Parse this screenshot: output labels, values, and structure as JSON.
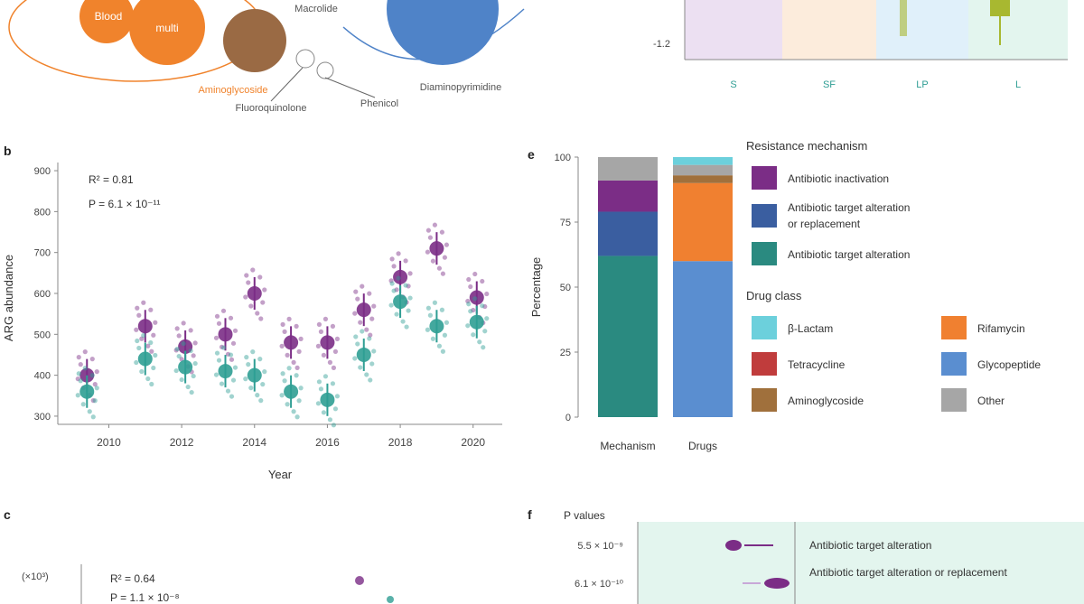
{
  "colors": {
    "purple": "#7b2d86",
    "teal": "#2f9e94",
    "dark_teal": "#2a8a80",
    "blue_dark": "#3a5ea0",
    "blue": "#5a8ed0",
    "orange": "#f08030",
    "red": "#c03c3c",
    "brown": "#a0703c",
    "gray": "#a6a6a6",
    "cyan": "#6cd0dc",
    "bubble_blue": "#4f83c8",
    "bubble_orange": "#f0832c",
    "bubble_brown": "#9a6a44",
    "panel_purple": "#ece0f2",
    "panel_peach": "#fcecdc",
    "panel_lightblue": "#e0f0fa",
    "panel_mint": "#e3f5ee",
    "olive": "#a8b830"
  },
  "panels": {
    "b_letter": "b",
    "c_letter": "c",
    "e_letter": "e",
    "f_letter": "f"
  },
  "bubbles": {
    "labels": [
      "Blood",
      "multi",
      "Aminoglycoside",
      "Fluoroquinolone",
      "Macrolide",
      "Diaminopyrimidine",
      "Phenicol"
    ]
  },
  "top_right": {
    "y_tick": "-1.2",
    "x_ticks": [
      "S",
      "SF",
      "LP",
      "L"
    ]
  },
  "chart_data": [
    {
      "panel": "b",
      "type": "scatter",
      "xlabel": "Year",
      "ylabel": "ARG abundance",
      "annotation_line1": "R² = 0.81",
      "annotation_line2": "P = 6.1 × 10⁻¹¹",
      "x_ticks": [
        "2010",
        "2012",
        "2014",
        "2016",
        "2018",
        "2020"
      ],
      "x_tick_values": [
        2010,
        2012,
        2014,
        2016,
        2018,
        2020
      ],
      "y_ticks": [
        "300",
        "400",
        "500",
        "600",
        "700",
        "800",
        "900"
      ],
      "y_tick_values": [
        300,
        400,
        500,
        600,
        700,
        800,
        900
      ],
      "xlim": [
        2008.6,
        2020.8
      ],
      "ylim": [
        280,
        920
      ],
      "series": [
        {
          "color_key": "purple",
          "x": [
            2009.4,
            2011.0,
            2012.1,
            2013.2,
            2014.0,
            2015.0,
            2016.0,
            2017.0,
            2018.0,
            2019.0,
            2020.1
          ],
          "y": [
            400,
            520,
            470,
            500,
            600,
            480,
            480,
            560,
            640,
            710,
            590
          ]
        },
        {
          "color_key": "teal",
          "x": [
            2009.4,
            2011.0,
            2012.1,
            2013.2,
            2014.0,
            2015.0,
            2016.0,
            2017.0,
            2018.0,
            2019.0,
            2020.1
          ],
          "y": [
            360,
            440,
            420,
            410,
            400,
            360,
            340,
            450,
            580,
            520,
            530
          ]
        }
      ]
    },
    {
      "panel": "e",
      "type": "bar",
      "stacked": true,
      "ylabel": "Percentage",
      "y_ticks": [
        "0",
        "25",
        "50",
        "75",
        "100"
      ],
      "y_tick_values": [
        0,
        25,
        50,
        75,
        100
      ],
      "ylim": [
        0,
        100
      ],
      "categories": [
        "Mechanism",
        "Drugs"
      ],
      "legend_title_1": "Resistance mechanism",
      "legend_1": [
        {
          "label": "Antibiotic inactivation",
          "color_key": "purple"
        },
        {
          "label": "Antibiotic target alteration or replacement",
          "color_key": "blue_dark"
        },
        {
          "label": "Antibiotic target alteration",
          "color_key": "dark_teal"
        }
      ],
      "legend_title_2": "Drug class",
      "legend_2": [
        {
          "label": "β-Lactam",
          "color_key": "cyan"
        },
        {
          "label": "Rifamycin",
          "color_key": "orange"
        },
        {
          "label": "Tetracycline",
          "color_key": "red"
        },
        {
          "label": "Glycopeptide",
          "color_key": "blue"
        },
        {
          "label": "Aminoglycoside",
          "color_key": "brown"
        },
        {
          "label": "Other",
          "color_key": "gray"
        }
      ],
      "stacks": [
        {
          "category": "Mechanism",
          "segments": [
            {
              "color_key": "dark_teal",
              "value": 62
            },
            {
              "color_key": "blue_dark",
              "value": 17
            },
            {
              "color_key": "purple",
              "value": 12
            },
            {
              "color_key": "gray",
              "value": 9
            }
          ]
        },
        {
          "category": "Drugs",
          "segments": [
            {
              "color_key": "blue",
              "value": 60
            },
            {
              "color_key": "orange",
              "value": 30
            },
            {
              "color_key": "brown",
              "value": 3
            },
            {
              "color_key": "gray",
              "value": 4
            },
            {
              "color_key": "cyan",
              "value": 3
            }
          ]
        }
      ]
    }
  ],
  "panel_c": {
    "annotation_line1": "R² = 0.64",
    "annotation_line2": "P = 1.1 × 10⁻⁸",
    "y_tick": "(×10³)"
  },
  "panel_f": {
    "title": "P values",
    "rows": [
      {
        "p": "5.5 × 10⁻⁹",
        "label": "Antibiotic target alteration"
      },
      {
        "p": "6.1 × 10⁻¹⁰",
        "label": "Antibiotic target alteration or replacement"
      }
    ]
  }
}
